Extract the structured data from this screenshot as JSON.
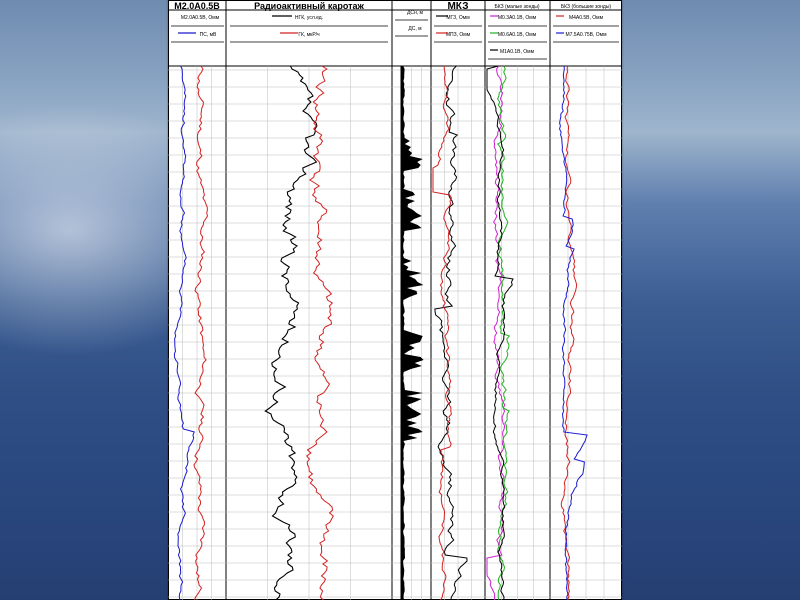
{
  "colors": {
    "red": "#d42020",
    "blue": "#1a1ad0",
    "black": "#000000",
    "green": "#20b020",
    "magenta": "#d020d0"
  },
  "headers": {
    "track1_title": "M2.0A0.5B",
    "track2_title": "Радиоактивный каротаж",
    "track4_title": "МКЗ",
    "track5_title": "БКЗ (малые зонды)",
    "track6_title": "БКЗ (большие зонды)"
  },
  "curve_labels": {
    "t1_c1": "M2.0A0.5B, Омм",
    "t1_c2": "ПС, мВ",
    "t2_c1": "НГК, усл.ед.",
    "t2_c2": "ГК, мкР/ч",
    "t3_c1": "ДСн, м",
    "t3_c2": "ДС, м",
    "t4_c1": "МГЗ, Омм",
    "t4_c2": "МПЗ, Омм",
    "t5_c1": "M0.3A0.1B, Омм",
    "t5_c2": "M0.6A0.1B, Омм",
    "t5_c3": "M1A0.1B, Омм",
    "t6_c1": "M4A0.5B, Омм",
    "t6_c2": "M7.5A0.75B, Омм"
  }
}
